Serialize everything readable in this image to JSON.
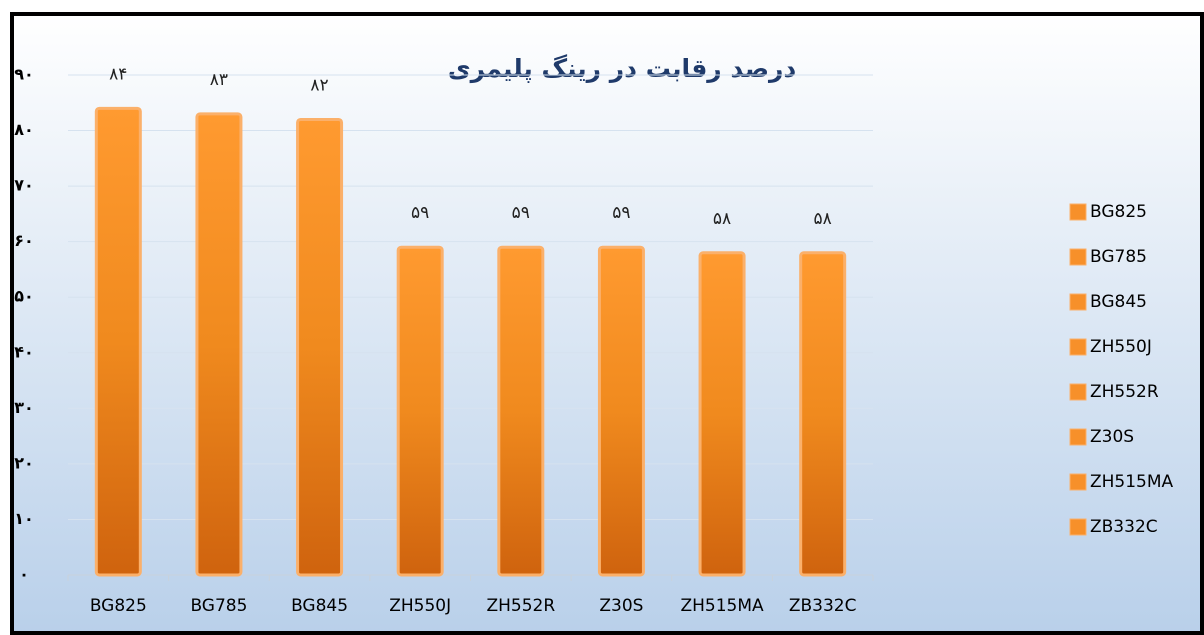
{
  "chart_data": {
    "type": "bar",
    "title": "درصد رقابت در رینگ پلیمری",
    "categories": [
      "BG825",
      "BG785",
      "BG845",
      "ZH550J",
      "ZH552R",
      "Z30S",
      "ZH515MA",
      "ZB332C"
    ],
    "values": [
      84,
      83,
      82,
      59,
      59,
      59,
      58,
      58
    ],
    "value_labels": [
      "۸۴",
      "۸۳",
      "۸۲",
      "۵۹",
      "۵۹",
      "۵۹",
      "۵۸",
      "۵۸"
    ],
    "color": "#f7902a",
    "ylim": [
      0,
      90
    ],
    "yticks": [
      {
        "value": 0,
        "label": "۰"
      },
      {
        "value": 10,
        "label": "۱۰"
      },
      {
        "value": 20,
        "label": "۲۰"
      },
      {
        "value": 30,
        "label": "۳۰"
      },
      {
        "value": 40,
        "label": "۴۰"
      },
      {
        "value": 50,
        "label": "۵۰"
      },
      {
        "value": 60,
        "label": "۶۰"
      },
      {
        "value": 70,
        "label": "۷۰"
      },
      {
        "value": 80,
        "label": "۸۰"
      },
      {
        "value": 90,
        "label": "۹۰"
      }
    ],
    "grid": true,
    "legend": "right"
  }
}
